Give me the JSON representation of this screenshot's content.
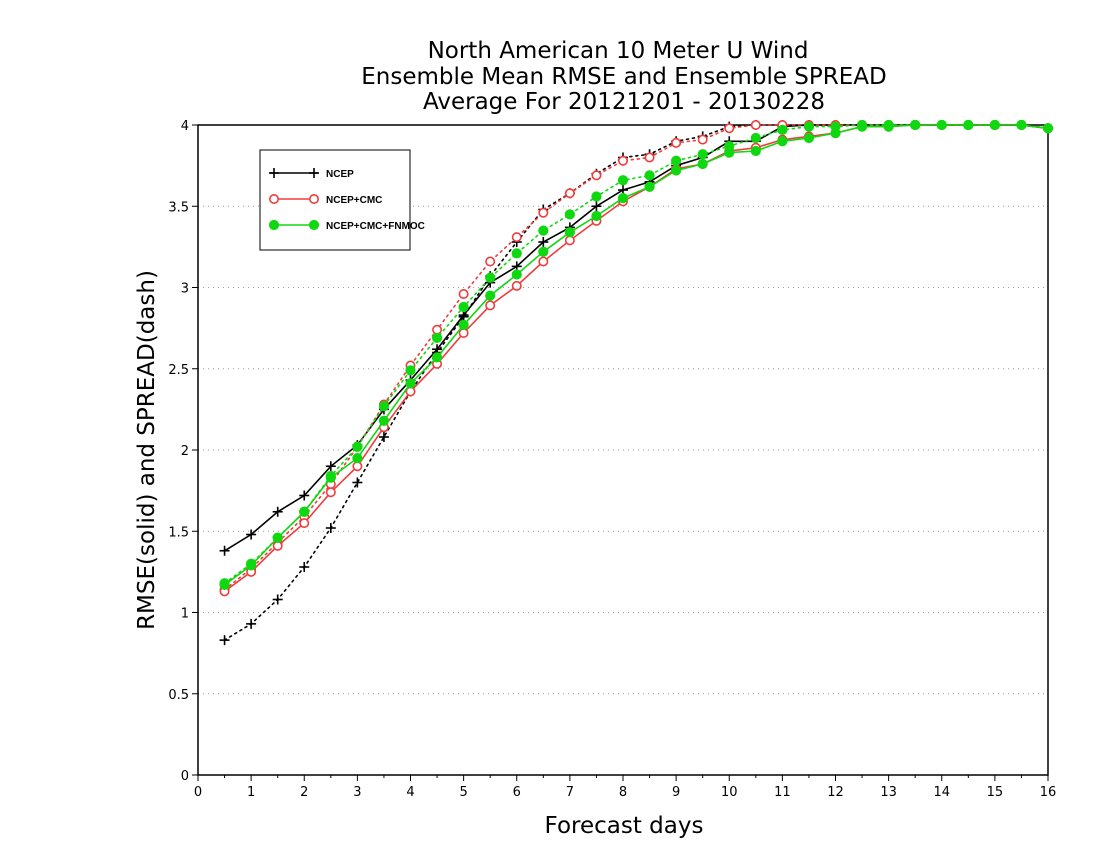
{
  "chart_data": {
    "type": "line",
    "title": [
      "North American 10 Meter U Wind",
      "Ensemble Mean RMSE and Ensemble SPREAD",
      "Average For 20121201 - 20130228"
    ],
    "xlabel": "Forecast days",
    "ylabel": "RMSE(solid) and SPREAD(dash)",
    "xlim": [
      0,
      16
    ],
    "ylim": [
      0,
      4
    ],
    "xticks": [
      0,
      1,
      2,
      3,
      4,
      5,
      6,
      7,
      8,
      9,
      10,
      11,
      12,
      13,
      14,
      15,
      16
    ],
    "yticks": [
      "0",
      "0.5",
      "1",
      "1.5",
      "2",
      "2.5",
      "3",
      "3.5",
      "4"
    ],
    "grid": "horizontal dotted",
    "legend_position": "top-left",
    "x": [
      0.5,
      1,
      1.5,
      2,
      2.5,
      3,
      3.5,
      4,
      4.5,
      5,
      5.5,
      6,
      6.5,
      7,
      7.5,
      8,
      8.5,
      9,
      9.5,
      10,
      10.5,
      11,
      11.5,
      12,
      12.5,
      13,
      13.5,
      14,
      14.5,
      15,
      15.5,
      16
    ],
    "series": [
      {
        "name": "NCEP",
        "color": "#000000",
        "marker": "plus",
        "rmse": [
          1.38,
          1.48,
          1.62,
          1.72,
          1.9,
          2.03,
          2.25,
          2.43,
          2.62,
          2.83,
          3.03,
          3.13,
          3.28,
          3.37,
          3.5,
          3.6,
          3.65,
          3.75,
          3.8,
          3.9,
          3.9,
          3.99,
          4.0,
          4.0,
          4.0,
          4.0,
          4.0,
          4.0,
          4.0,
          4.0,
          4.0,
          3.98
        ],
        "spread": [
          0.83,
          0.93,
          1.08,
          1.28,
          1.52,
          1.8,
          2.08,
          2.36,
          2.6,
          2.82,
          3.07,
          3.28,
          3.48,
          3.58,
          3.7,
          3.8,
          3.82,
          3.9,
          3.93,
          3.99,
          4.0,
          4.0,
          4.0,
          4.0,
          4.0,
          4.0,
          4.0,
          4.0,
          4.0,
          4.0,
          4.0,
          3.98
        ]
      },
      {
        "name": "NCEP+CMC",
        "color": "#f03c3c",
        "marker": "open-circle",
        "rmse": [
          1.13,
          1.25,
          1.41,
          1.55,
          1.74,
          1.9,
          2.14,
          2.36,
          2.53,
          2.72,
          2.89,
          3.01,
          3.16,
          3.29,
          3.41,
          3.53,
          3.62,
          3.73,
          3.76,
          3.84,
          3.86,
          3.91,
          3.93,
          3.95,
          3.99,
          3.99,
          4.0,
          4.0,
          4.0,
          4.0,
          4.0,
          3.98
        ],
        "spread": [
          1.14,
          1.27,
          1.43,
          1.59,
          1.79,
          2.02,
          2.28,
          2.52,
          2.74,
          2.96,
          3.16,
          3.31,
          3.46,
          3.58,
          3.69,
          3.78,
          3.8,
          3.89,
          3.91,
          3.98,
          4.0,
          4.0,
          4.0,
          4.0,
          4.0,
          4.0,
          4.0,
          4.0,
          4.0,
          4.0,
          4.0,
          3.98
        ]
      },
      {
        "name": "NCEP+CMC+FNMOC",
        "color": "#10d810",
        "marker": "filled-circle",
        "rmse": [
          1.17,
          1.29,
          1.46,
          1.62,
          1.83,
          1.95,
          2.18,
          2.41,
          2.57,
          2.77,
          2.95,
          3.08,
          3.22,
          3.34,
          3.44,
          3.55,
          3.62,
          3.72,
          3.76,
          3.83,
          3.84,
          3.9,
          3.92,
          3.95,
          3.99,
          3.99,
          4.0,
          4.0,
          4.0,
          4.0,
          4.0,
          3.98
        ],
        "spread": [
          1.18,
          1.3,
          1.46,
          1.62,
          1.84,
          2.02,
          2.27,
          2.49,
          2.69,
          2.88,
          3.06,
          3.21,
          3.35,
          3.45,
          3.56,
          3.66,
          3.69,
          3.78,
          3.82,
          3.87,
          3.92,
          3.97,
          3.99,
          3.99,
          4.0,
          4.0,
          4.0,
          4.0,
          4.0,
          4.0,
          4.0,
          3.98
        ]
      }
    ]
  }
}
